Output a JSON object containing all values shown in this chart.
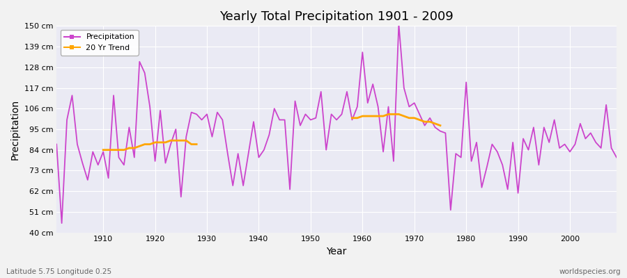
{
  "title": "Yearly Total Precipitation 1901 - 2009",
  "xlabel": "Year",
  "ylabel": "Precipitation",
  "subtitle": "Latitude 5.75 Longitude 0.25",
  "watermark": "worldspecies.org",
  "ylim": [
    40,
    150
  ],
  "yticks": [
    40,
    51,
    62,
    73,
    84,
    95,
    106,
    117,
    128,
    139,
    150
  ],
  "ytick_labels": [
    "40 cm",
    "51 cm",
    "62 cm",
    "73 cm",
    "84 cm",
    "95 cm",
    "106 cm",
    "117 cm",
    "128 cm",
    "139 cm",
    "150 cm"
  ],
  "xlim": [
    1901,
    2009
  ],
  "xticks": [
    1910,
    1920,
    1930,
    1940,
    1950,
    1960,
    1970,
    1980,
    1990,
    2000
  ],
  "precip_color": "#CC44CC",
  "trend_color": "#FFA500",
  "bg_color": "#F0F0F0",
  "plot_bg": "#E8E8F0",
  "legend_bg": "#FFFFFF",
  "precipitation": {
    "1901": 87,
    "1902": 45,
    "1903": 100,
    "1904": 113,
    "1905": 87,
    "1906": 77,
    "1907": 68,
    "1908": 83,
    "1909": 76,
    "1910": 83,
    "1911": 69,
    "1912": 113,
    "1913": 80,
    "1914": 76,
    "1915": 96,
    "1916": 80,
    "1917": 131,
    "1918": 125,
    "1919": 107,
    "1920": 78,
    "1921": 105,
    "1922": 77,
    "1923": 87,
    "1924": 95,
    "1925": 59,
    "1926": 91,
    "1927": 104,
    "1928": 103,
    "1929": 100,
    "1930": 103,
    "1931": 91,
    "1932": 104,
    "1933": 100,
    "1934": 82,
    "1935": 65,
    "1936": 82,
    "1937": 65,
    "1938": 82,
    "1939": 99,
    "1940": 80,
    "1941": 84,
    "1942": 92,
    "1943": 106,
    "1944": 100,
    "1945": 100,
    "1946": 63,
    "1947": 110,
    "1948": 97,
    "1949": 103,
    "1950": 100,
    "1951": 101,
    "1952": 115,
    "1953": 84,
    "1954": 103,
    "1955": 100,
    "1956": 103,
    "1957": 115,
    "1958": 100,
    "1959": 107,
    "1960": 136,
    "1961": 109,
    "1962": 119,
    "1963": 107,
    "1964": 83,
    "1965": 107,
    "1966": 78,
    "1967": 151,
    "1968": 117,
    "1969": 107,
    "1970": 109,
    "1971": 103,
    "1972": 97,
    "1973": 101,
    "1974": 96,
    "1975": 94,
    "1976": 93,
    "1977": 52,
    "1978": 82,
    "1979": 80,
    "1980": 120,
    "1981": 78,
    "1982": 88,
    "1983": 64,
    "1984": 75,
    "1985": 87,
    "1986": 83,
    "1987": 76,
    "1988": 63,
    "1989": 88,
    "1990": 61,
    "1991": 90,
    "1992": 84,
    "1993": 96,
    "1994": 76,
    "1995": 96,
    "1996": 88,
    "1997": 100,
    "1998": 85,
    "1999": 87,
    "2000": 83,
    "2001": 87,
    "2002": 98,
    "2003": 90,
    "2004": 93,
    "2005": 88,
    "2006": 85,
    "2007": 108,
    "2008": 85,
    "2009": 80
  },
  "trend_seg1_years": [
    1910,
    1911,
    1912,
    1913,
    1914,
    1915,
    1916,
    1917,
    1918,
    1919,
    1920,
    1921,
    1922,
    1923,
    1924,
    1925,
    1926,
    1927,
    1928
  ],
  "trend_seg1_vals": [
    84,
    84,
    84,
    84,
    84,
    85,
    85,
    86,
    87,
    87,
    88,
    88,
    88,
    89,
    89,
    89,
    89,
    87,
    87
  ],
  "trend_seg2_years": [
    1958,
    1959,
    1960,
    1961,
    1962,
    1963,
    1964,
    1965,
    1966,
    1967,
    1968,
    1969,
    1970,
    1971,
    1972,
    1973,
    1974,
    1975
  ],
  "trend_seg2_vals": [
    101,
    101,
    102,
    102,
    102,
    102,
    102,
    103,
    103,
    103,
    102,
    101,
    101,
    100,
    99,
    99,
    98,
    97
  ]
}
